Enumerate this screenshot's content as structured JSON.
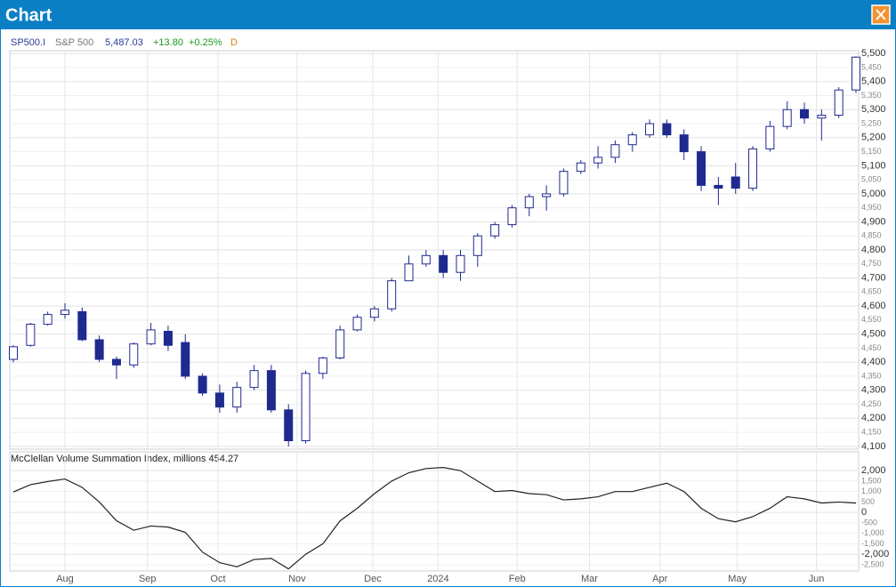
{
  "window": {
    "title": "Chart"
  },
  "chart_data": [
    {
      "type": "candlestick",
      "symbol": "SP500.I",
      "name": "S&P 500",
      "last": "5,487.03",
      "change": "+13.80",
      "change_pct": "+0.25%",
      "interval": "D",
      "color": "#1f2a8f",
      "grid": true,
      "open": [
        4410,
        4460,
        4535,
        4570,
        4580,
        4480,
        4410,
        4390,
        4465,
        4510,
        4470,
        4350,
        4290,
        4240,
        4310,
        4370,
        4230,
        4120,
        4360,
        4415,
        4515,
        4560,
        4590,
        4690,
        4750,
        4780,
        4720,
        4780,
        4850,
        4890,
        4950,
        4990,
        5000,
        5080,
        5110,
        5130,
        5175,
        5210,
        5250,
        5210,
        5150,
        5030,
        5060,
        5020,
        5160,
        5240,
        5300,
        5270,
        5280,
        5370
      ],
      "high": [
        4460,
        4540,
        4580,
        4610,
        4595,
        4495,
        4420,
        4470,
        4540,
        4530,
        4500,
        4360,
        4320,
        4330,
        4390,
        4390,
        4250,
        4370,
        4420,
        4530,
        4570,
        4600,
        4700,
        4780,
        4800,
        4800,
        4800,
        4860,
        4900,
        4960,
        5000,
        5030,
        5090,
        5120,
        5170,
        5190,
        5220,
        5265,
        5265,
        5230,
        5170,
        5060,
        5110,
        5170,
        5260,
        5330,
        5325,
        5300,
        5380,
        5490
      ],
      "low": [
        4400,
        4455,
        4530,
        4555,
        4475,
        4400,
        4340,
        4380,
        4460,
        4440,
        4340,
        4280,
        4220,
        4220,
        4300,
        4220,
        4100,
        4110,
        4340,
        4410,
        4510,
        4545,
        4580,
        4690,
        4740,
        4700,
        4690,
        4740,
        4840,
        4880,
        4920,
        4940,
        4990,
        5070,
        5090,
        5110,
        5150,
        5200,
        5200,
        5120,
        5010,
        4960,
        5000,
        5010,
        5150,
        5230,
        5250,
        5190,
        5270,
        5360
      ],
      "close": [
        4455,
        4535,
        4570,
        4585,
        4480,
        4410,
        4390,
        4465,
        4515,
        4460,
        4350,
        4290,
        4240,
        4310,
        4370,
        4230,
        4120,
        4360,
        4415,
        4515,
        4560,
        4590,
        4690,
        4750,
        4780,
        4720,
        4780,
        4850,
        4890,
        4950,
        4990,
        5000,
        5080,
        5110,
        5130,
        5175,
        5210,
        5250,
        5210,
        5150,
        5030,
        5020,
        5020,
        5160,
        5240,
        5300,
        5270,
        5280,
        5370,
        5487
      ],
      "ylim": [
        4090,
        5510
      ],
      "yticks": [
        {
          "value": 5500,
          "label": "5,500"
        },
        {
          "value": 5450,
          "label": "5,450"
        },
        {
          "value": 5400,
          "label": "5,400"
        },
        {
          "value": 5350,
          "label": "5,350"
        },
        {
          "value": 5300,
          "label": "5,300"
        },
        {
          "value": 5250,
          "label": "5,250"
        },
        {
          "value": 5200,
          "label": "5,200"
        },
        {
          "value": 5150,
          "label": "5,150"
        },
        {
          "value": 5100,
          "label": "5,100"
        },
        {
          "value": 5050,
          "label": "5,050"
        },
        {
          "value": 5000,
          "label": "5,000"
        },
        {
          "value": 4950,
          "label": "4,950"
        },
        {
          "value": 4900,
          "label": "4,900"
        },
        {
          "value": 4850,
          "label": "4,850"
        },
        {
          "value": 4800,
          "label": "4,800"
        },
        {
          "value": 4750,
          "label": "4,750"
        },
        {
          "value": 4700,
          "label": "4,700"
        },
        {
          "value": 4650,
          "label": "4,650"
        },
        {
          "value": 4600,
          "label": "4,600"
        },
        {
          "value": 4550,
          "label": "4,550"
        },
        {
          "value": 4500,
          "label": "4,500"
        },
        {
          "value": 4450,
          "label": "4,450"
        },
        {
          "value": 4400,
          "label": "4,400"
        },
        {
          "value": 4350,
          "label": "4,350"
        },
        {
          "value": 4300,
          "label": "4,300"
        },
        {
          "value": 4250,
          "label": "4,250"
        },
        {
          "value": 4200,
          "label": "4,200"
        },
        {
          "value": 4150,
          "label": "4,150"
        },
        {
          "value": 4100,
          "label": "4,100"
        }
      ]
    },
    {
      "type": "line",
      "title": "McClellan Volume Summation Index, millions 454.27",
      "color": "#222222",
      "grid": true,
      "values": [
        980,
        1330,
        1480,
        1600,
        1200,
        500,
        -400,
        -850,
        -650,
        -700,
        -950,
        -1900,
        -2400,
        -2600,
        -2250,
        -2200,
        -2700,
        -2000,
        -1500,
        -400,
        200,
        900,
        1500,
        1900,
        2100,
        2150,
        2000,
        1500,
        1000,
        1050,
        900,
        850,
        600,
        650,
        750,
        1000,
        1000,
        1200,
        1400,
        1000,
        200,
        -300,
        -450,
        -200,
        200,
        750,
        650,
        450,
        500,
        450
      ],
      "ylim": [
        -2800,
        2900
      ],
      "yticks": [
        {
          "value": 2000,
          "label": "2,000"
        },
        {
          "value": 1500,
          "label": "1,500"
        },
        {
          "value": 1000,
          "label": "1,000"
        },
        500,
        0,
        {
          "value": -500,
          "label": "-500"
        },
        {
          "value": -1000,
          "label": "-1,000"
        },
        {
          "value": -1500,
          "label": "-1,500"
        },
        {
          "value": -2000,
          "label": "-2,000"
        },
        {
          "value": -2500,
          "label": "-2,500"
        }
      ],
      "xticks": [
        {
          "value": 3.0,
          "label": "Aug"
        },
        {
          "value": 7.8,
          "label": "Sep"
        },
        {
          "value": 11.9,
          "label": "Oct"
        },
        {
          "value": 16.5,
          "label": "Nov"
        },
        {
          "value": 20.9,
          "label": "Dec"
        },
        {
          "value": 24.7,
          "label": "2024"
        },
        {
          "value": 29.3,
          "label": "Feb"
        },
        {
          "value": 33.5,
          "label": "Mar"
        },
        {
          "value": 37.6,
          "label": "Apr"
        },
        {
          "value": 42.1,
          "label": "May"
        },
        {
          "value": 46.7,
          "label": "Jun"
        }
      ]
    }
  ]
}
